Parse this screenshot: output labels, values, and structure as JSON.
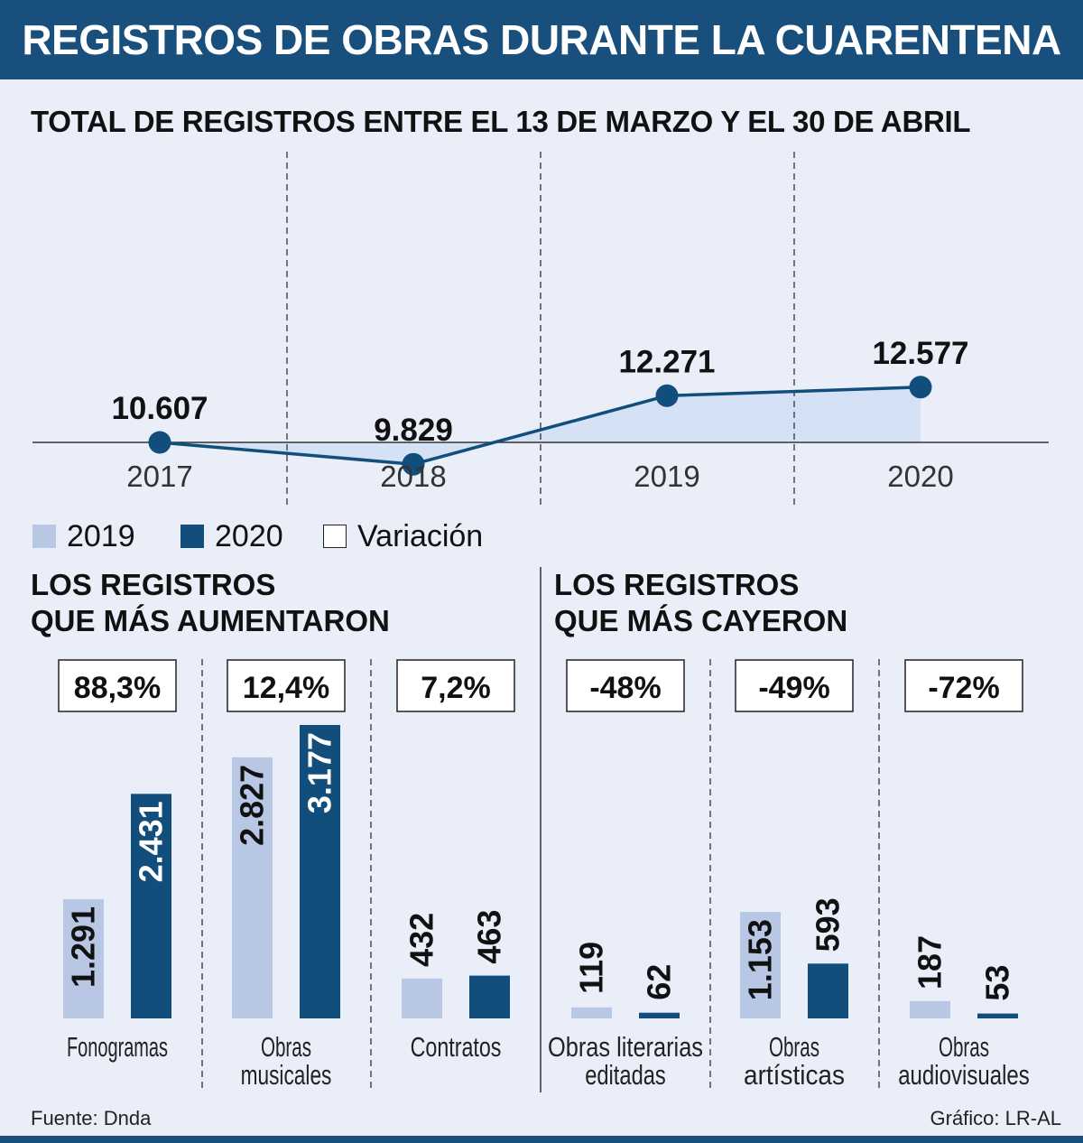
{
  "header": {
    "title": "REGISTROS DE OBRAS DURANTE LA CUARENTENA"
  },
  "footer": {
    "source": "Fuente: Dnda",
    "credit": "Gráfico: LR-AL"
  },
  "colors": {
    "banner": "#184f7c",
    "dark": "#124e7b",
    "light": "#b8c8e4",
    "area": "#d5e1f4",
    "background": "#e9eef8"
  },
  "legend": [
    {
      "label": "2019",
      "color": "#b8c8e4"
    },
    {
      "label": "2020",
      "color": "#124e7b"
    },
    {
      "label": "Variación",
      "color": "#ffffff"
    }
  ],
  "sections": {
    "increased": [
      "LOS REGISTROS",
      "QUE MÁS AUMENTARON"
    ],
    "decreased": [
      "LOS REGISTROS",
      "QUE MÁS CAYERON"
    ]
  },
  "chart_data": [
    {
      "type": "area",
      "title": "TOTAL DE REGISTROS ENTRE EL 13 DE MARZO Y EL 30 DE ABRIL",
      "categories": [
        "2017",
        "2018",
        "2019",
        "2020"
      ],
      "values": [
        10607,
        9829,
        12271,
        12577
      ],
      "value_labels": [
        "10.607",
        "9.829",
        "12.271",
        "12.577"
      ],
      "grid": false
    },
    {
      "type": "bar",
      "categories": [
        "Fonogramas",
        "Obras musicales",
        "Contratos",
        "Obras literarias editadas",
        "Obras artísticas",
        "Obras audiovisuales"
      ],
      "category_lines": [
        [
          "Fonogramas"
        ],
        [
          "Obras",
          "musicales"
        ],
        [
          "Contratos"
        ],
        [
          "Obras literarias",
          "editadas"
        ],
        [
          "Obras",
          "artísticas"
        ],
        [
          "Obras",
          "audiovisuales"
        ]
      ],
      "series": [
        {
          "name": "2019",
          "values": [
            1291,
            2827,
            432,
            119,
            1153,
            187
          ],
          "labels": [
            "1.291",
            "2.827",
            "432",
            "119",
            "1.153",
            "187"
          ]
        },
        {
          "name": "2020",
          "values": [
            2431,
            3177,
            463,
            62,
            593,
            53
          ],
          "labels": [
            "2.431",
            "3.177",
            "463",
            "62",
            "593",
            "53"
          ]
        }
      ],
      "variation": [
        "88,3%",
        "12,4%",
        "7,2%",
        "-48%",
        "-49%",
        "-72%"
      ],
      "ylim": [
        0,
        3177
      ]
    }
  ]
}
